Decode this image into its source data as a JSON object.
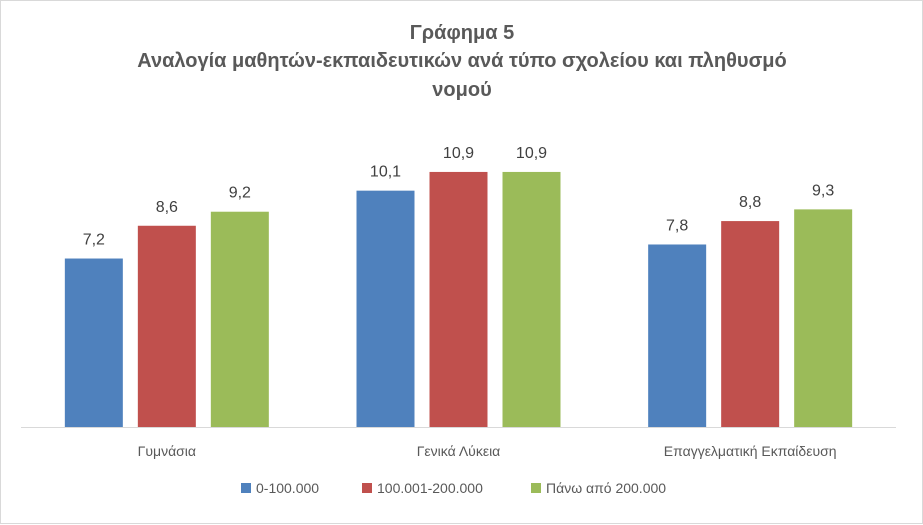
{
  "chart_data": {
    "type": "bar",
    "title": "Γράφημα 5",
    "subtitle_lines": [
      "Αναλογία μαθητών-εκπαιδευτικών ανά τύπο σχολείου και πληθυσμό",
      "νομού"
    ],
    "categories": [
      "Γυμνάσια",
      "Γενικά Λύκεια",
      "Επαγγελματική Εκπαίδευση"
    ],
    "series": [
      {
        "name": "0-100.000",
        "color": "#4f81bd",
        "values": [
          7.2,
          10.1,
          7.8
        ],
        "labels": [
          "7,2",
          "10,1",
          "7,8"
        ]
      },
      {
        "name": "100.001-200.000",
        "color": "#c0504d",
        "values": [
          8.6,
          10.9,
          8.8
        ],
        "labels": [
          "8,6",
          "10,9",
          "8,8"
        ]
      },
      {
        "name": "Πάνω από 200.000",
        "color": "#9bbb59",
        "values": [
          9.2,
          10.9,
          9.3
        ],
        "labels": [
          "9,2",
          "10,9",
          "9,3"
        ]
      }
    ],
    "ylim": [
      0,
      12
    ],
    "grid": false,
    "y_axis_visible": false,
    "legend_position": "bottom"
  }
}
